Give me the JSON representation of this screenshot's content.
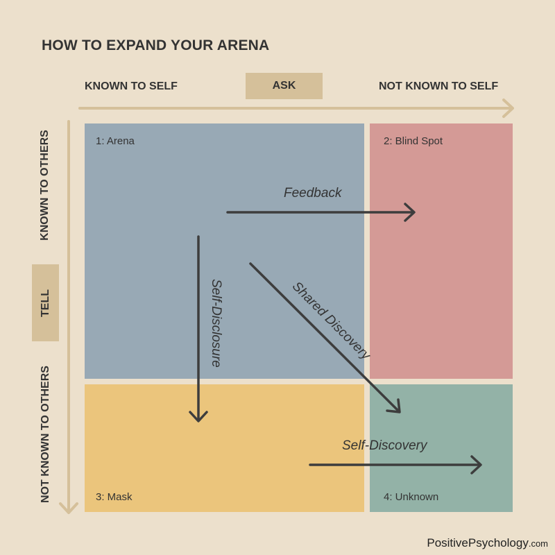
{
  "title": "HOW TO EXPAND YOUR ARENA",
  "top_axis": {
    "left_label": "KNOWN TO SELF",
    "center_tag": "ASK",
    "right_label": "NOT KNOWN TO SELF"
  },
  "left_axis": {
    "top_label": "KNOWN TO OTHERS",
    "center_tag": "TELL",
    "bottom_label": "NOT KNOWN TO OTHERS"
  },
  "quadrants": [
    {
      "label": "1: Arena",
      "color": "#98a9b5"
    },
    {
      "label": "2: Blind Spot",
      "color": "#d49a96"
    },
    {
      "label": "3: Mask",
      "color": "#ebc57c"
    },
    {
      "label": "4: Unknown",
      "color": "#93b2a7"
    }
  ],
  "arrows": {
    "feedback": "Feedback",
    "self_disclosure": "Self-Disclosure",
    "shared_discovery": "Shared Discovery",
    "self_discovery": "Self-Discovery"
  },
  "colors": {
    "background": "#ece0cc",
    "axis": "#d5c09a",
    "arrow": "#3d3d3d"
  },
  "brand": {
    "name": "PositivePsychology",
    "suffix": ".com"
  }
}
